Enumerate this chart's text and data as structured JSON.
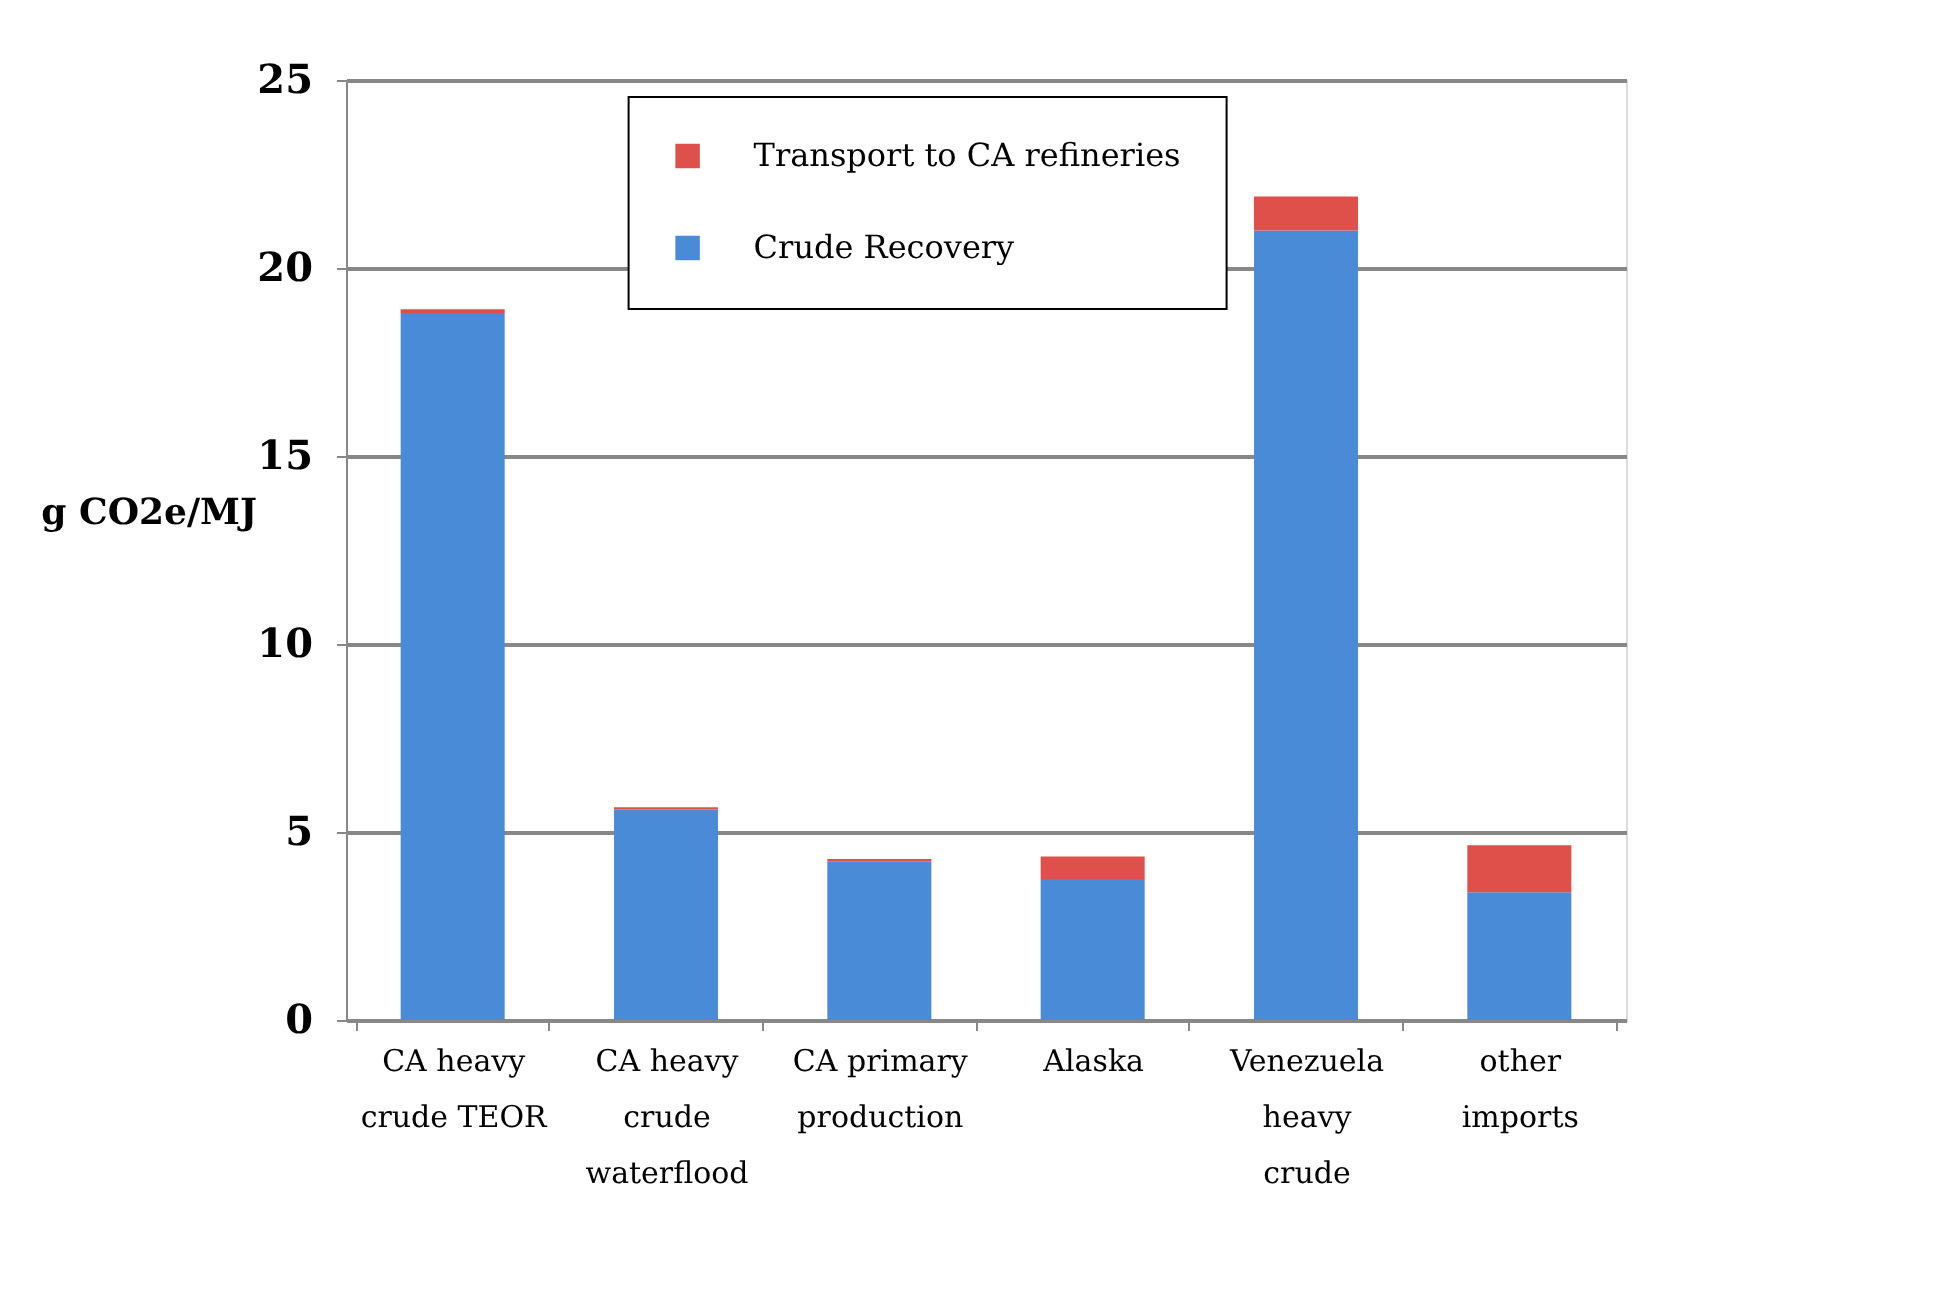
{
  "chart_data": {
    "type": "bar",
    "ylabel": "g CO2e/MJ",
    "categories": [
      "CA heavy crude TEOR",
      "CA heavy crude waterflood",
      "CA primary production",
      "Alaska",
      "Venezuela heavy crude",
      "other imports"
    ],
    "series": [
      {
        "name": "Crude Recovery",
        "color": "#4a8bd8",
        "values": [
          18.8,
          5.6,
          4.22,
          3.75,
          21.0,
          3.4
        ]
      },
      {
        "name": "Transport to CA refineries",
        "color": "#e0504a",
        "values": [
          0.1,
          0.06,
          0.06,
          0.6,
          0.9,
          1.25
        ]
      }
    ],
    "stacked": true,
    "ylim": [
      0,
      25
    ],
    "yticks": [
      0,
      5,
      10,
      15,
      20,
      25
    ],
    "grid": "y",
    "legend": "top"
  }
}
